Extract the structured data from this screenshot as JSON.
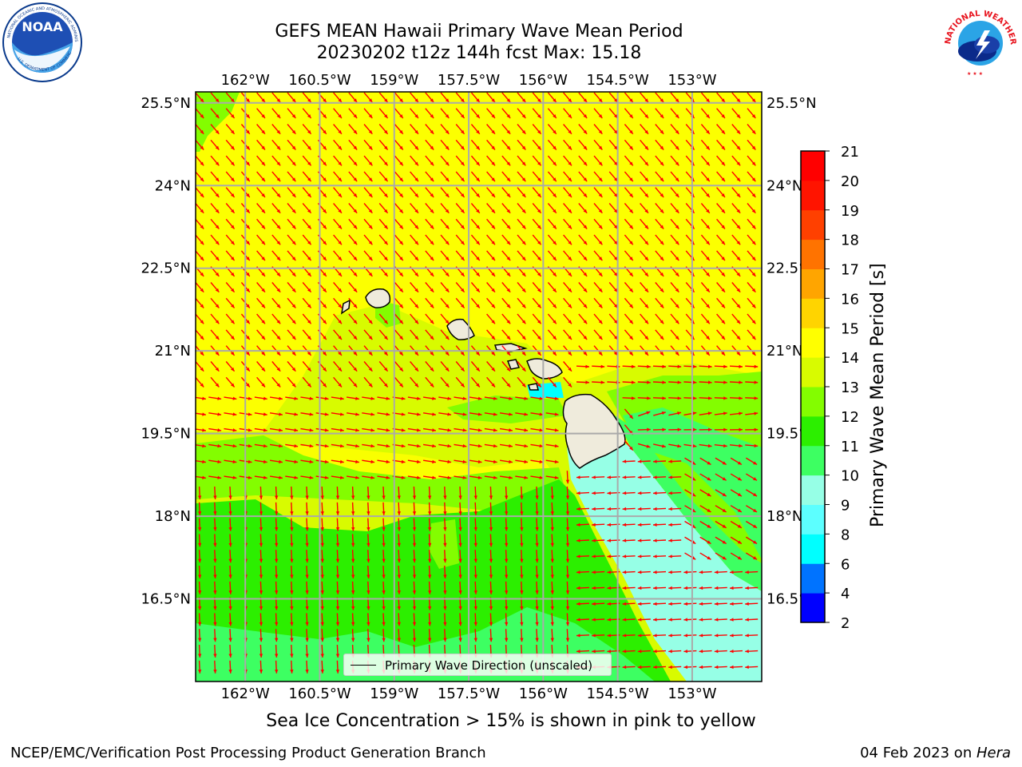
{
  "header": {
    "title_line1": "GEFS MEAN Hawaii Primary Wave Mean Period",
    "title_line2": "20230202 t12z 144h fcst   Max: 15.18"
  },
  "logos": {
    "noaa": {
      "text": "NOAA",
      "ring_text": "NATIONAL OCEANIC AND ATMOSPHERIC ADMINISTRATION",
      "bottom_text": "U.S. DEPARTMENT OF COMMERCE"
    },
    "nws": {
      "ring_text": "NATIONAL WEATHER SERVICE"
    }
  },
  "map": {
    "lon_range": [
      -163.0,
      -151.6
    ],
    "lat_range": [
      15.0,
      25.7
    ],
    "lon_ticks": [
      "162°W",
      "160.5°W",
      "159°W",
      "157.5°W",
      "156°W",
      "154.5°W",
      "153°W"
    ],
    "lon_tick_values": [
      -162.0,
      -160.5,
      -159.0,
      -157.5,
      -156.0,
      -154.5,
      -153.0
    ],
    "lat_ticks": [
      "25.5°N",
      "24°N",
      "22.5°N",
      "21°N",
      "19.5°N",
      "18°N",
      "16.5°N"
    ],
    "lat_tick_values": [
      25.5,
      24.0,
      22.5,
      21.0,
      19.5,
      18.0,
      16.5
    ],
    "gridlines": true,
    "arrow_color": "#ff0000",
    "land_color": "#efebdc",
    "ocean_dominant_period": "14-15 s (yellow-green)"
  },
  "colorbar": {
    "label": "Primary Wave Mean Period [s]",
    "levels": [
      "2",
      "4",
      "6",
      "8",
      "9",
      "10",
      "11",
      "12",
      "13",
      "14",
      "15",
      "16",
      "17",
      "18",
      "19",
      "20",
      "21"
    ],
    "colors": [
      "#0000ff",
      "#0073ff",
      "#00ffff",
      "#5cffff",
      "#96ffe6",
      "#3dff62",
      "#2cef00",
      "#83fd00",
      "#d8fb00",
      "#ffff00",
      "#ffd400",
      "#ffa500",
      "#ff7300",
      "#ff4000",
      "#ff1400",
      "#ff0000"
    ]
  },
  "legend": {
    "label": "Primary Wave Direction (unscaled)"
  },
  "notes": {
    "sea_ice": "Sea Ice Concentration > 15% is shown in pink to yellow"
  },
  "footer": {
    "left": "NCEP/EMC/Verification Post Processing Product Generation Branch",
    "right_prefix": "04 Feb 2023 on ",
    "right_machine": "Hera"
  }
}
